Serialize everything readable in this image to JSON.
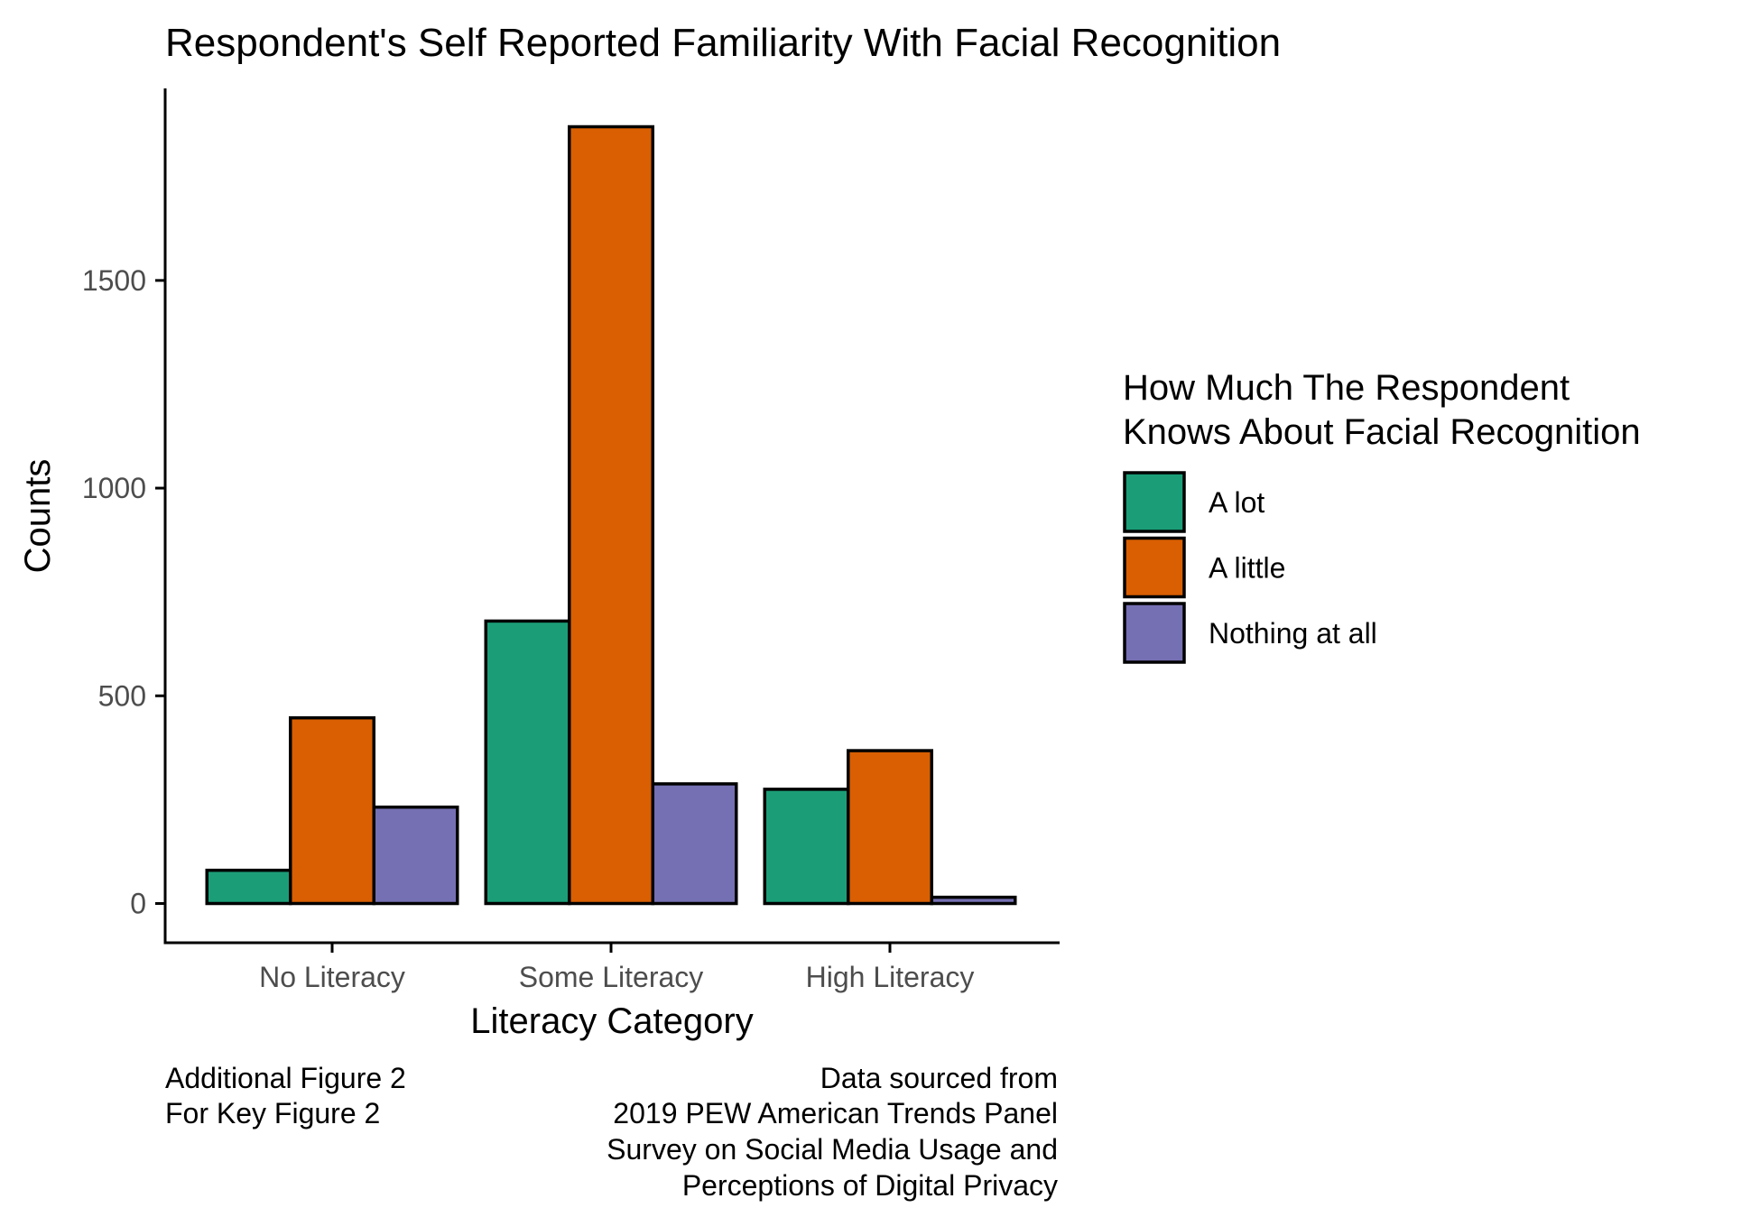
{
  "chart_data": {
    "type": "bar",
    "title": "Respondent's Self Reported Familiarity With Facial Recognition",
    "xlabel": "Literacy Category",
    "ylabel": "Counts",
    "categories": [
      "No Literacy",
      "Some Literacy",
      "High Literacy"
    ],
    "series": [
      {
        "name": "A lot",
        "color": "#1B9E77",
        "values": [
          80,
          680,
          275
        ]
      },
      {
        "name": "A little",
        "color": "#D95F02",
        "values": [
          447,
          1870,
          368
        ]
      },
      {
        "name": "Nothing at all",
        "color": "#7570B3",
        "values": [
          232,
          288,
          15
        ]
      }
    ],
    "ylim": [
      0,
      1870
    ],
    "yticks": [
      0,
      500,
      1000,
      1500
    ],
    "legend": {
      "title_lines": [
        "How Much The Respondent",
        "Knows About Facial Recognition"
      ],
      "position": "right"
    },
    "grid": false
  },
  "caption": {
    "left_lines": [
      "Additional Figure 2",
      "For Key Figure 2"
    ],
    "right_lines": [
      "Data sourced from",
      "2019 PEW American Trends Panel",
      "Survey on Social Media Usage and",
      "Perceptions of Digital Privacy"
    ]
  }
}
